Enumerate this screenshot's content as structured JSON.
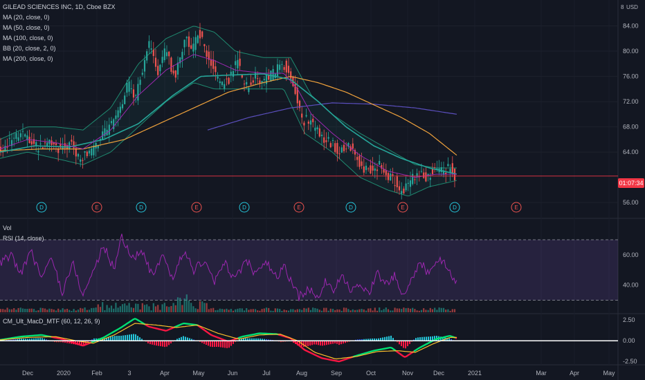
{
  "header": {
    "symbol_line": "GILEAD SCIENCES INC, 1D, Cboe BZX",
    "currency": "USD",
    "currency_partial": "8"
  },
  "indicators": {
    "ma20": "MA (20, close, 0)",
    "ma50": "MA (50, close, 0)",
    "ma100": "MA (100, close, 0)",
    "bb": "BB (20, close, 2, 0)",
    "ma200": "MA (200, close, 0)"
  },
  "price_tag": "01:07:34",
  "panes": {
    "vol": "Vol",
    "rsi": "RSI (14, close)",
    "macd": "CM_Ult_MacD_MTF (60, 12, 26, 9)"
  },
  "colors": {
    "background": "#131722",
    "up": "#26a69a",
    "down": "#ef5350",
    "ma20": "#9c27b0",
    "ma50": "#26a69a",
    "ma100": "#f0a23c",
    "ma200": "#5b4fbe",
    "bb": "#1f8a70",
    "rsi": "#9c27b0",
    "price_line": "#f23645"
  },
  "chart_data": [
    {
      "type": "candlestick",
      "title": "GILEAD SCIENCES INC, 1D, Cboe BZX",
      "x_tick_labels": [
        "Dec",
        "2020",
        "Feb",
        "3",
        "Apr",
        "May",
        "Jun",
        "Jul",
        "Aug",
        "Sep",
        "Oct",
        "Nov",
        "Dec",
        "2021",
        "Mar",
        "Apr",
        "May"
      ],
      "y_tick_labels": [
        "84.00",
        "80.00",
        "76.00",
        "72.00",
        "68.00",
        "64.00",
        "56.00"
      ],
      "ylim": [
        53.5,
        88
      ],
      "close_path_knots": [
        [
          0,
          64
        ],
        [
          10,
          65.5
        ],
        [
          25,
          66.8
        ],
        [
          40,
          66.2
        ],
        [
          55,
          64.5
        ],
        [
          70,
          66
        ],
        [
          85,
          64.5
        ],
        [
          100,
          65.5
        ],
        [
          115,
          63
        ],
        [
          130,
          64
        ],
        [
          145,
          66.5
        ],
        [
          160,
          68
        ],
        [
          175,
          70.5
        ],
        [
          185,
          75
        ],
        [
          195,
          72.5
        ],
        [
          205,
          76.5
        ],
        [
          215,
          81
        ],
        [
          228,
          77
        ],
        [
          240,
          80.5
        ],
        [
          252,
          75.5
        ],
        [
          262,
          79.5
        ],
        [
          268,
          82
        ],
        [
          276,
          79.5
        ],
        [
          286,
          83
        ],
        [
          296,
          80.5
        ],
        [
          306,
          78
        ],
        [
          318,
          74.5
        ],
        [
          330,
          75.5
        ],
        [
          342,
          78.5
        ],
        [
          354,
          74
        ],
        [
          368,
          76
        ],
        [
          380,
          75.5
        ],
        [
          395,
          76.5
        ],
        [
          410,
          78
        ],
        [
          420,
          75.5
        ],
        [
          428,
          73
        ],
        [
          436,
          69
        ],
        [
          445,
          69
        ],
        [
          455,
          67.5
        ],
        [
          465,
          66.5
        ],
        [
          478,
          65.5
        ],
        [
          490,
          64
        ],
        [
          502,
          65
        ],
        [
          512,
          64
        ],
        [
          522,
          61
        ],
        [
          535,
          61.5
        ],
        [
          548,
          62
        ],
        [
          558,
          60
        ],
        [
          570,
          59.5
        ],
        [
          580,
          57.5
        ],
        [
          592,
          59.5
        ],
        [
          603,
          61
        ],
        [
          615,
          60
        ],
        [
          628,
          61
        ],
        [
          640,
          61
        ],
        [
          650,
          61.5
        ],
        [
          658,
          60
        ]
      ],
      "ma20_knots": [
        [
          0,
          64.5
        ],
        [
          40,
          66
        ],
        [
          80,
          65.5
        ],
        [
          120,
          64.5
        ],
        [
          160,
          67.5
        ],
        [
          200,
          73
        ],
        [
          240,
          77
        ],
        [
          280,
          79.5
        ],
        [
          310,
          78.5
        ],
        [
          340,
          77
        ],
        [
          380,
          76.5
        ],
        [
          410,
          76.5
        ],
        [
          430,
          74
        ],
        [
          450,
          70
        ],
        [
          480,
          67
        ],
        [
          520,
          63.5
        ],
        [
          560,
          61
        ],
        [
          600,
          60
        ],
        [
          630,
          60.5
        ],
        [
          660,
          60.5
        ]
      ],
      "ma50_knots": [
        [
          0,
          64
        ],
        [
          50,
          65
        ],
        [
          100,
          64.8
        ],
        [
          150,
          66
        ],
        [
          200,
          68.5
        ],
        [
          250,
          73
        ],
        [
          290,
          76
        ],
        [
          330,
          76.2
        ],
        [
          380,
          76.4
        ],
        [
          420,
          75.5
        ],
        [
          460,
          72
        ],
        [
          500,
          68
        ],
        [
          540,
          65
        ],
        [
          580,
          63
        ],
        [
          620,
          61.5
        ],
        [
          660,
          60.5
        ]
      ],
      "ma100_knots": [
        [
          0,
          64.2
        ],
        [
          60,
          64.5
        ],
        [
          120,
          64.5
        ],
        [
          180,
          66
        ],
        [
          230,
          68.5
        ],
        [
          280,
          71
        ],
        [
          330,
          73.5
        ],
        [
          380,
          75
        ],
        [
          420,
          76
        ],
        [
          460,
          75
        ],
        [
          500,
          73.5
        ],
        [
          540,
          71.5
        ],
        [
          580,
          69.5
        ],
        [
          620,
          67
        ],
        [
          660,
          63.5
        ]
      ],
      "ma200_knots": [
        [
          300,
          67.5
        ],
        [
          360,
          69.5
        ],
        [
          420,
          71
        ],
        [
          480,
          71.8
        ],
        [
          540,
          71.6
        ],
        [
          600,
          71
        ],
        [
          660,
          70
        ]
      ],
      "bb_upper_knots": [
        [
          0,
          66
        ],
        [
          40,
          68
        ],
        [
          80,
          68
        ],
        [
          120,
          67.5
        ],
        [
          160,
          71
        ],
        [
          200,
          78
        ],
        [
          240,
          82
        ],
        [
          280,
          84
        ],
        [
          310,
          83
        ],
        [
          340,
          80
        ],
        [
          380,
          79
        ],
        [
          420,
          79
        ],
        [
          450,
          73
        ],
        [
          480,
          70
        ],
        [
          520,
          67
        ],
        [
          560,
          64.5
        ],
        [
          600,
          62
        ],
        [
          630,
          61.5
        ],
        [
          660,
          61.5
        ]
      ],
      "bb_lower_knots": [
        [
          0,
          63
        ],
        [
          40,
          64
        ],
        [
          80,
          63
        ],
        [
          120,
          62
        ],
        [
          160,
          64
        ],
        [
          200,
          68
        ],
        [
          240,
          72
        ],
        [
          280,
          75
        ],
        [
          310,
          74
        ],
        [
          340,
          74
        ],
        [
          380,
          74
        ],
        [
          410,
          74
        ],
        [
          440,
          67
        ],
        [
          480,
          64
        ],
        [
          520,
          60
        ],
        [
          560,
          58
        ],
        [
          590,
          57
        ],
        [
          620,
          58.5
        ],
        [
          660,
          59.5
        ]
      ],
      "last_price_level": 60.2
    },
    {
      "type": "line",
      "title": "RSI (14, close)",
      "y_tick_labels": [
        "60.00",
        "40.00"
      ],
      "ylim": [
        22,
        75
      ],
      "upper_band": 70,
      "lower_band": 30,
      "knots": [
        [
          0,
          54
        ],
        [
          15,
          60
        ],
        [
          30,
          48
        ],
        [
          45,
          62
        ],
        [
          60,
          45
        ],
        [
          75,
          58
        ],
        [
          90,
          35
        ],
        [
          105,
          55
        ],
        [
          120,
          33
        ],
        [
          135,
          50
        ],
        [
          150,
          66
        ],
        [
          165,
          50
        ],
        [
          175,
          73
        ],
        [
          190,
          58
        ],
        [
          205,
          62
        ],
        [
          220,
          46
        ],
        [
          235,
          58
        ],
        [
          250,
          44
        ],
        [
          265,
          63
        ],
        [
          280,
          50
        ],
        [
          295,
          56
        ],
        [
          310,
          42
        ],
        [
          325,
          55
        ],
        [
          340,
          43
        ],
        [
          355,
          57
        ],
        [
          370,
          47
        ],
        [
          385,
          55
        ],
        [
          400,
          44
        ],
        [
          410,
          53
        ],
        [
          420,
          43
        ],
        [
          432,
          32
        ],
        [
          445,
          38
        ],
        [
          458,
          31
        ],
        [
          470,
          42
        ],
        [
          482,
          37
        ],
        [
          495,
          45
        ],
        [
          508,
          35
        ],
        [
          520,
          43
        ],
        [
          532,
          33
        ],
        [
          545,
          49
        ],
        [
          557,
          40
        ],
        [
          570,
          46
        ],
        [
          582,
          32
        ],
        [
          595,
          44
        ],
        [
          608,
          55
        ],
        [
          620,
          47
        ],
        [
          635,
          59
        ],
        [
          645,
          52
        ],
        [
          655,
          45
        ],
        [
          660,
          41
        ]
      ]
    },
    {
      "type": "line",
      "title": "CM_Ult_MacD_MTF (60, 12, 26, 9)",
      "y_tick_labels": [
        "2.50",
        "0.00",
        "-2.50"
      ],
      "ylim": [
        -2.9,
        3.1
      ],
      "macd_knots": [
        [
          0,
          0.1
        ],
        [
          30,
          0.5
        ],
        [
          60,
          0.7
        ],
        [
          90,
          0.2
        ],
        [
          120,
          -0.6
        ],
        [
          150,
          0.4
        ],
        [
          175,
          1.6
        ],
        [
          195,
          2.7
        ],
        [
          215,
          1.7
        ],
        [
          240,
          1.2
        ],
        [
          265,
          2.1
        ],
        [
          285,
          1.9
        ],
        [
          305,
          0.7
        ],
        [
          330,
          -0.1
        ],
        [
          350,
          0.5
        ],
        [
          375,
          0.9
        ],
        [
          400,
          0.8
        ],
        [
          420,
          0.3
        ],
        [
          440,
          -1.1
        ],
        [
          465,
          -2.1
        ],
        [
          490,
          -2.5
        ],
        [
          515,
          -1.8
        ],
        [
          540,
          -1.2
        ],
        [
          565,
          -0.8
        ],
        [
          585,
          -2.0
        ],
        [
          605,
          -0.9
        ],
        [
          630,
          0.2
        ],
        [
          650,
          0.6
        ],
        [
          660,
          0.3
        ]
      ],
      "signal_knots": [
        [
          0,
          0.1
        ],
        [
          40,
          0.4
        ],
        [
          80,
          0.5
        ],
        [
          110,
          0.0
        ],
        [
          135,
          -0.3
        ],
        [
          165,
          0.7
        ],
        [
          195,
          2.1
        ],
        [
          225,
          1.9
        ],
        [
          255,
          1.6
        ],
        [
          285,
          1.9
        ],
        [
          315,
          0.9
        ],
        [
          345,
          0.2
        ],
        [
          375,
          0.7
        ],
        [
          405,
          0.8
        ],
        [
          430,
          0.0
        ],
        [
          455,
          -1.4
        ],
        [
          485,
          -2.2
        ],
        [
          515,
          -1.9
        ],
        [
          545,
          -1.3
        ],
        [
          575,
          -1.2
        ],
        [
          600,
          -1.4
        ],
        [
          625,
          -0.4
        ],
        [
          650,
          0.4
        ],
        [
          660,
          0.4
        ]
      ]
    }
  ],
  "events": [
    {
      "label": "D",
      "kind": "dividend"
    },
    {
      "label": "E",
      "kind": "earnings"
    },
    {
      "label": "D",
      "kind": "dividend"
    },
    {
      "label": "E",
      "kind": "earnings"
    },
    {
      "label": "D",
      "kind": "dividend"
    },
    {
      "label": "E",
      "kind": "earnings"
    },
    {
      "label": "D",
      "kind": "dividend"
    },
    {
      "label": "E",
      "kind": "earnings"
    },
    {
      "label": "D",
      "kind": "dividend"
    },
    {
      "label": "E",
      "kind": "earnings"
    }
  ]
}
